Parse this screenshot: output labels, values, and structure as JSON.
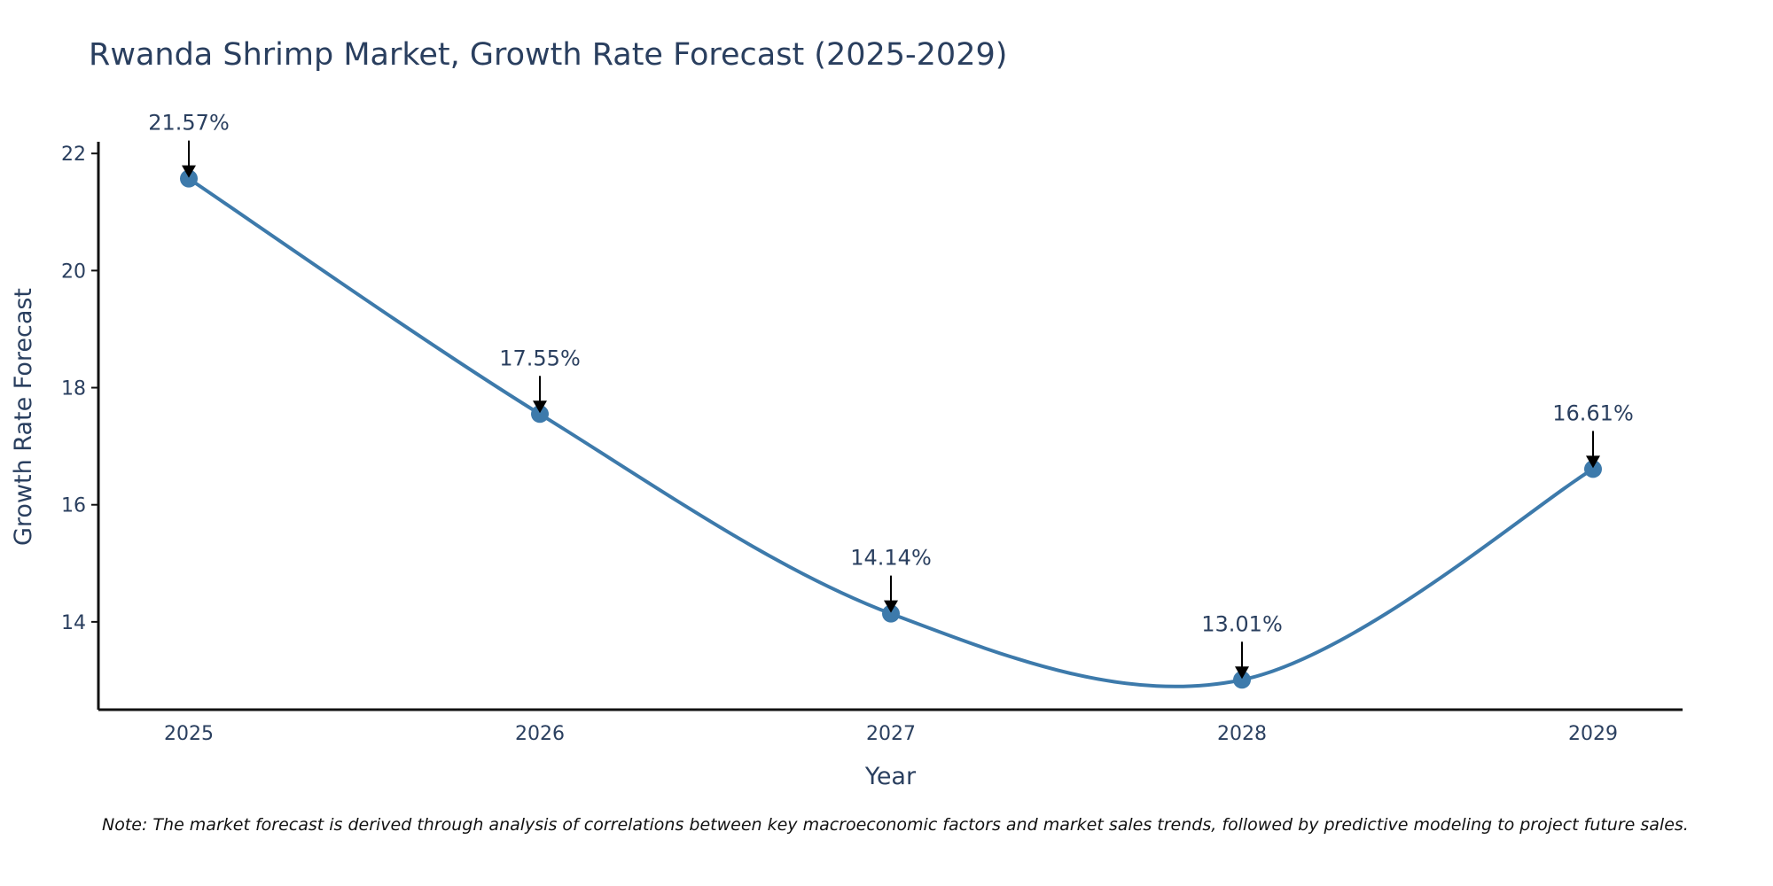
{
  "chart_data": {
    "type": "line",
    "title": "Rwanda Shrimp Market, Growth Rate Forecast (2025-2029)",
    "xlabel": "Year",
    "ylabel": "Growth Rate Forecast",
    "categories": [
      "2025",
      "2026",
      "2027",
      "2028",
      "2029"
    ],
    "values": [
      21.57,
      17.55,
      14.14,
      13.01,
      16.61
    ],
    "data_labels": [
      "21.57%",
      "17.55%",
      "14.14%",
      "13.01%",
      "16.61%"
    ],
    "yticks": [
      14,
      16,
      18,
      20,
      22
    ],
    "ylim": [
      12.5,
      22.2
    ],
    "line_shape": "spline",
    "grid": false,
    "line_color": "#3d7aab",
    "marker_color": "#3d7aab",
    "arrow_color": "#000000"
  },
  "note": "Note: The market forecast is derived through analysis of correlations between key macroeconomic factors and market sales trends, followed by predictive modeling to project future sales."
}
